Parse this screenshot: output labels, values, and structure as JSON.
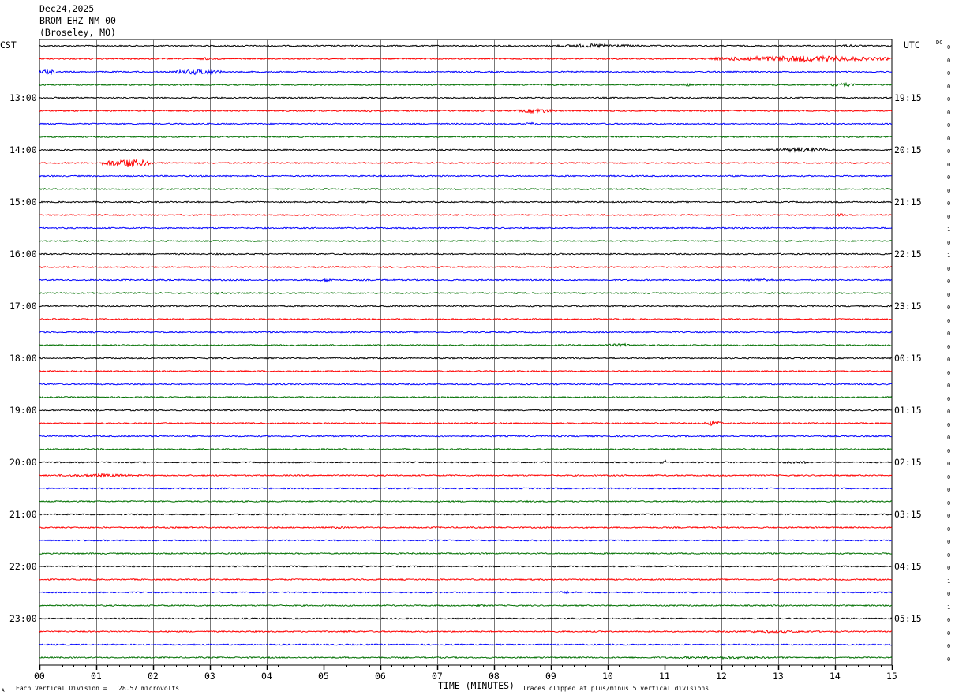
{
  "header": {
    "date": "Dec24,2025",
    "station": "BROM EHZ NM 00",
    "location": "(Broseley, MO)"
  },
  "left_zone": "CST",
  "right_zone": "UTC",
  "dc_header": "DC",
  "footer": {
    "scale_note": "Each Vertical Division =   28.57 microvolts",
    "clip_note": "Traces clipped at plus/minus 5 vertical divisions",
    "mark": "A"
  },
  "chart_data": {
    "type": "line",
    "title": "",
    "xlabel": "TIME (MINUTES)",
    "ylabel": "",
    "xlim": [
      0,
      15
    ],
    "x_ticks": [
      "00",
      "01",
      "02",
      "03",
      "04",
      "05",
      "06",
      "07",
      "08",
      "09",
      "10",
      "11",
      "12",
      "13",
      "14",
      "15"
    ],
    "grid": true,
    "trace_count": 48,
    "trace_colors": [
      "#000000",
      "#ff0000",
      "#0000ff",
      "#007000"
    ],
    "left_hour_labels": [
      "13:00",
      "14:00",
      "15:00",
      "16:00",
      "17:00",
      "18:00",
      "19:00",
      "20:00",
      "21:00",
      "22:00",
      "23:00"
    ],
    "right_hour_labels": [
      "19:15",
      "20:15",
      "21:15",
      "22:15",
      "23:15",
      "00:15",
      "01:15",
      "02:15",
      "03:15",
      "04:15",
      "05:15"
    ],
    "hour_label_first_trace": 4,
    "dc_offsets": [
      "0",
      "0",
      "0",
      "0",
      "0",
      "0",
      "0",
      "0",
      "0",
      "0",
      "0",
      "0",
      "0",
      "0",
      "1",
      "0",
      "1",
      "0",
      "0",
      "0",
      "0",
      "0",
      "0",
      "0",
      "0",
      "0",
      "0",
      "0",
      "0",
      "0",
      "0",
      "0",
      "0",
      "0",
      "0",
      "0",
      "0",
      "0",
      "0",
      "0",
      "0",
      "1",
      "0",
      "1",
      "0",
      "0",
      "0",
      "0"
    ],
    "bursts": [
      {
        "trace": 0,
        "from_min": 9.0,
        "to_min": 10.6,
        "amp": 2.5
      },
      {
        "trace": 0,
        "from_min": 14.1,
        "to_min": 14.5,
        "amp": 2.0
      },
      {
        "trace": 1,
        "from_min": 2.8,
        "to_min": 3.0,
        "amp": 2.0
      },
      {
        "trace": 1,
        "from_min": 11.8,
        "to_min": 15.0,
        "amp": 4.0
      },
      {
        "trace": 2,
        "from_min": 0.0,
        "to_min": 0.3,
        "amp": 3.5
      },
      {
        "trace": 2,
        "from_min": 2.4,
        "to_min": 3.2,
        "amp": 4.0
      },
      {
        "trace": 3,
        "from_min": 11.3,
        "to_min": 11.5,
        "amp": 2.0
      },
      {
        "trace": 3,
        "from_min": 13.9,
        "to_min": 14.4,
        "amp": 2.5
      },
      {
        "trace": 5,
        "from_min": 5.6,
        "to_min": 5.9,
        "amp": 2.0
      },
      {
        "trace": 5,
        "from_min": 8.4,
        "to_min": 9.1,
        "amp": 3.0
      },
      {
        "trace": 6,
        "from_min": 8.5,
        "to_min": 8.8,
        "amp": 2.0
      },
      {
        "trace": 8,
        "from_min": 12.8,
        "to_min": 14.0,
        "amp": 3.0
      },
      {
        "trace": 9,
        "from_min": 1.1,
        "to_min": 2.0,
        "amp": 6.0
      },
      {
        "trace": 13,
        "from_min": 14.0,
        "to_min": 14.2,
        "amp": 1.8
      },
      {
        "trace": 18,
        "from_min": 4.9,
        "to_min": 5.2,
        "amp": 2.5
      },
      {
        "trace": 18,
        "from_min": 12.4,
        "to_min": 13.0,
        "amp": 2.0
      },
      {
        "trace": 19,
        "from_min": 3.0,
        "to_min": 3.3,
        "amp": 1.5
      },
      {
        "trace": 23,
        "from_min": 9.9,
        "to_min": 10.6,
        "amp": 2.0
      },
      {
        "trace": 29,
        "from_min": 11.7,
        "to_min": 12.0,
        "amp": 3.5
      },
      {
        "trace": 32,
        "from_min": 10.9,
        "to_min": 11.1,
        "amp": 3.0
      },
      {
        "trace": 32,
        "from_min": 13.0,
        "to_min": 13.6,
        "amp": 2.0
      },
      {
        "trace": 33,
        "from_min": 0.2,
        "to_min": 1.9,
        "amp": 2.0
      },
      {
        "trace": 37,
        "from_min": 5.1,
        "to_min": 5.4,
        "amp": 1.6
      },
      {
        "trace": 42,
        "from_min": 9.0,
        "to_min": 9.6,
        "amp": 1.6
      },
      {
        "trace": 43,
        "from_min": 7.6,
        "to_min": 7.9,
        "amp": 1.5
      },
      {
        "trace": 45,
        "from_min": 5.3,
        "to_min": 5.6,
        "amp": 1.6
      },
      {
        "trace": 45,
        "from_min": 11.8,
        "to_min": 14.0,
        "amp": 1.6
      },
      {
        "trace": 47,
        "from_min": 10.5,
        "to_min": 13.5,
        "amp": 1.6
      }
    ]
  }
}
